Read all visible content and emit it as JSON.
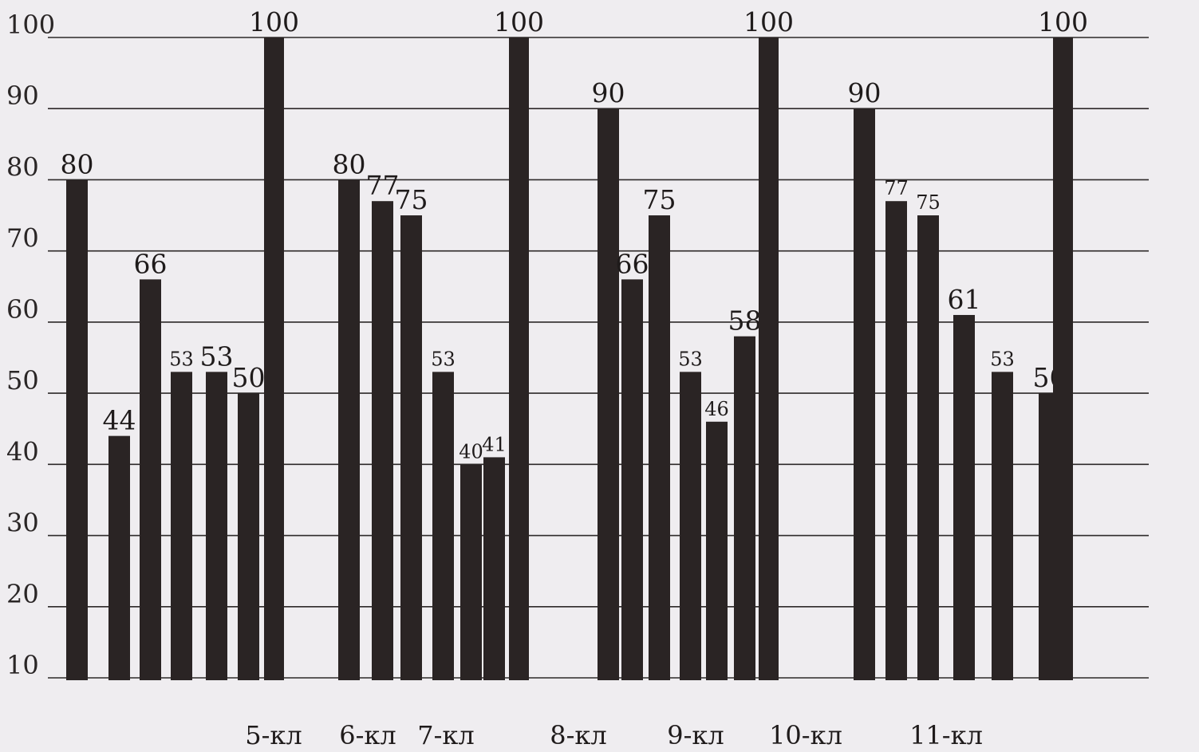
{
  "chart_data": {
    "type": "bar",
    "title": "",
    "xlabel": "",
    "ylabel": "",
    "ylim": [
      10,
      100
    ],
    "yticks": [
      100,
      90,
      80,
      70,
      60,
      50,
      40,
      30,
      20,
      10
    ],
    "ytick_labels": [
      "100",
      "90",
      "80",
      "70",
      "60",
      "50",
      "40",
      "30",
      "20",
      "10"
    ],
    "grid": true,
    "legend": "none",
    "bar_color": "#2a2424",
    "categories": [
      "5-кл",
      "6-кл",
      "7-кл",
      "8-кл",
      "9-кл",
      "10-кл",
      "11-кл"
    ],
    "groups": [
      {
        "values": [
          80,
          44,
          66,
          53,
          53,
          50,
          100
        ],
        "labels": [
          "80",
          "44",
          "66",
          "53",
          "53",
          "50",
          "100"
        ]
      },
      {
        "values": [
          80,
          77,
          75,
          53,
          40,
          41,
          100
        ],
        "labels": [
          "80",
          "77",
          "75",
          "53",
          "40",
          "41",
          "100"
        ]
      },
      {
        "values": [
          90,
          66,
          75,
          53,
          46,
          58,
          100
        ],
        "labels": [
          "90",
          "66",
          "75",
          "53",
          "46",
          "58",
          "100"
        ]
      },
      {
        "values": [
          90,
          77,
          75,
          61,
          53,
          50,
          100
        ],
        "labels": [
          "90",
          "77",
          "75",
          "61",
          "53",
          "50",
          "100"
        ]
      }
    ]
  }
}
